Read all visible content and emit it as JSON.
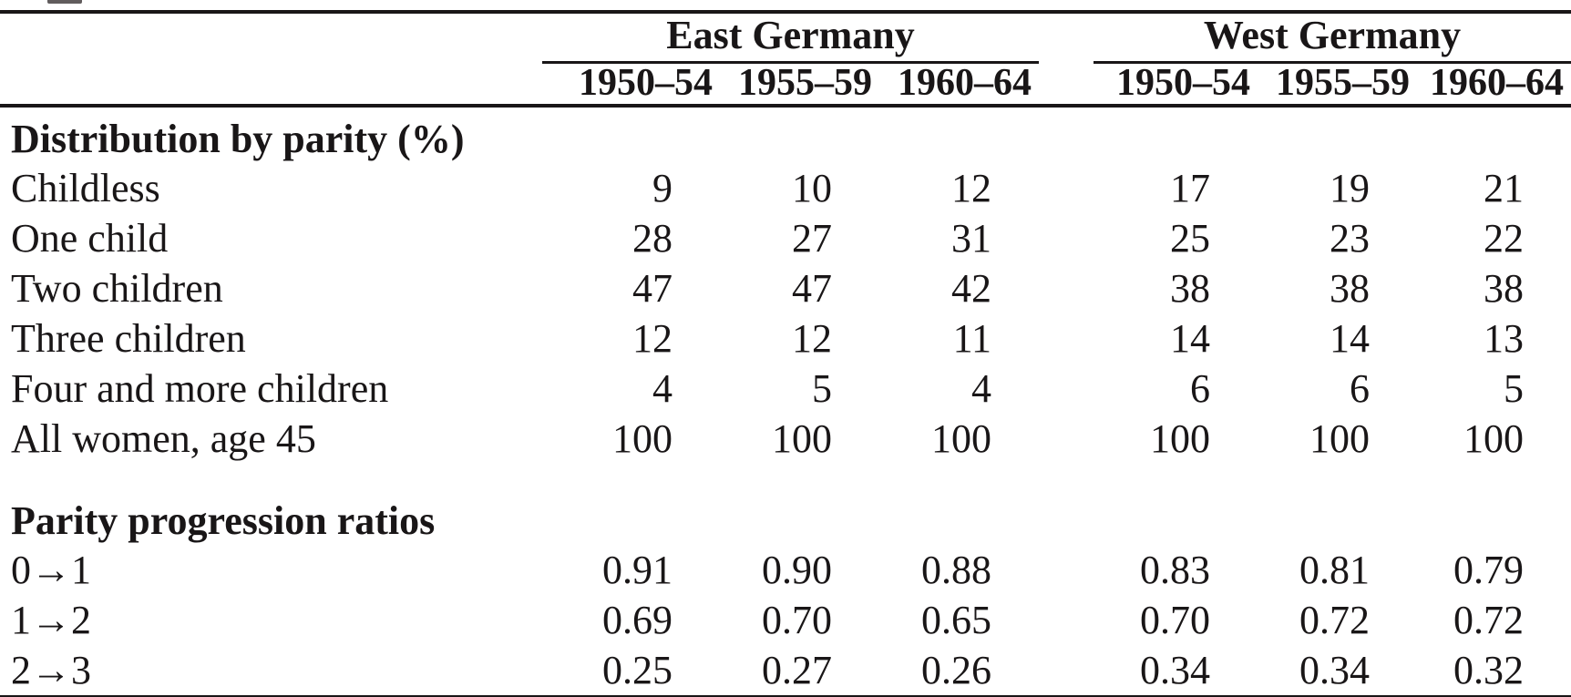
{
  "chart_data": {
    "type": "table",
    "column_groups": [
      {
        "label": "East Germany",
        "cohorts": [
          "1950–54",
          "1955–59",
          "1960–64"
        ]
      },
      {
        "label": "West Germany",
        "cohorts": [
          "1950–54",
          "1955–59",
          "1960–64"
        ]
      }
    ],
    "sections": [
      {
        "title": "Distribution by parity (%)",
        "rows": [
          {
            "label": "Childless",
            "values": [
              "9",
              "10",
              "12",
              "17",
              "19",
              "21"
            ]
          },
          {
            "label": "One child",
            "values": [
              "28",
              "27",
              "31",
              "25",
              "23",
              "22"
            ]
          },
          {
            "label": "Two children",
            "values": [
              "47",
              "47",
              "42",
              "38",
              "38",
              "38"
            ]
          },
          {
            "label": "Three children",
            "values": [
              "12",
              "12",
              "11",
              "14",
              "14",
              "13"
            ]
          },
          {
            "label": "Four and more children",
            "values": [
              "4",
              "5",
              "4",
              "6",
              "6",
              "5"
            ]
          },
          {
            "label": "All women, age 45",
            "values": [
              "100",
              "100",
              "100",
              "100",
              "100",
              "100"
            ]
          }
        ]
      },
      {
        "title": "Parity progression ratios",
        "rows": [
          {
            "label": "0→1",
            "values": [
              "0.91",
              "0.90",
              "0.88",
              "0.83",
              "0.81",
              "0.79"
            ]
          },
          {
            "label": "1→2",
            "values": [
              "0.69",
              "0.70",
              "0.65",
              "0.70",
              "0.72",
              "0.72"
            ]
          },
          {
            "label": "2→3",
            "values": [
              "0.25",
              "0.27",
              "0.26",
              "0.34",
              "0.34",
              "0.32"
            ]
          }
        ]
      }
    ]
  }
}
